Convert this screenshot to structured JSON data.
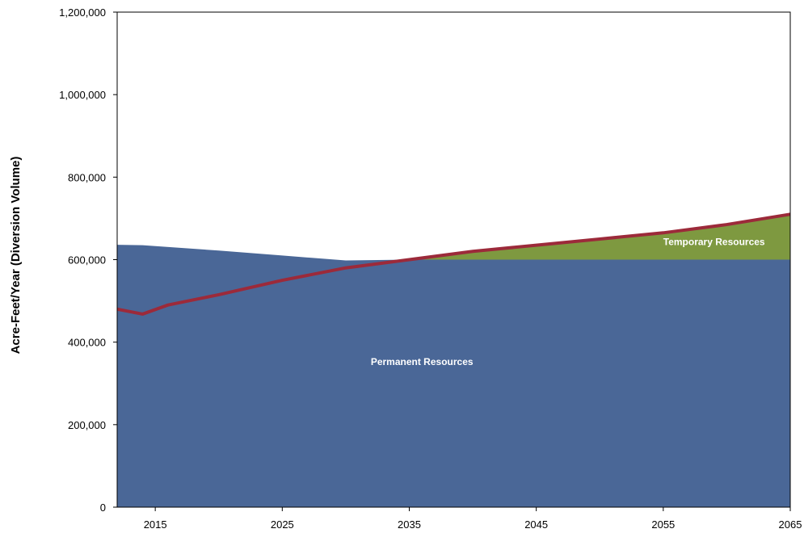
{
  "chart_data": {
    "type": "area",
    "title": "",
    "xlabel": "",
    "ylabel": "Acre-Feet/Year (Diversion Volume)",
    "x_ticks": [
      "2015",
      "2025",
      "2035",
      "2045",
      "2055",
      "2065"
    ],
    "y_ticks": [
      "0",
      "200,000",
      "400,000",
      "600,000",
      "800,000",
      "1,000,000",
      "1,200,000"
    ],
    "xlim": [
      2012,
      2065
    ],
    "ylim": [
      0,
      1200000
    ],
    "grid": false,
    "series": [
      {
        "name": "Permanent Resources",
        "kind": "area",
        "color": "#4A6797",
        "x": [
          2012,
          2014,
          2020,
          2025,
          2030,
          2035,
          2040,
          2045,
          2050,
          2055,
          2060,
          2065
        ],
        "values": [
          636000,
          635000,
          622000,
          610000,
          598000,
          600000,
          600000,
          600000,
          600000,
          600000,
          600000,
          600000
        ]
      },
      {
        "name": "Temporary Resources",
        "kind": "area",
        "color": "#7E9940",
        "x": [
          2012,
          2014,
          2020,
          2025,
          2030,
          2035,
          2040,
          2045,
          2050,
          2055,
          2060,
          2065
        ],
        "values": [
          0,
          0,
          0,
          0,
          0,
          0,
          20000,
          35000,
          50000,
          65000,
          85000,
          110000
        ]
      },
      {
        "name": "",
        "kind": "line",
        "color": "#9C2A3A",
        "x": [
          2012,
          2014,
          2016,
          2020,
          2025,
          2030,
          2035,
          2040,
          2045,
          2050,
          2055,
          2060,
          2065
        ],
        "values": [
          480000,
          468000,
          490000,
          515000,
          550000,
          580000,
          600000,
          620000,
          635000,
          650000,
          665000,
          685000,
          710000
        ]
      }
    ],
    "annotations": [
      {
        "text": "Permanent Resources",
        "x": 2036,
        "y": 345000
      },
      {
        "text": "Temporary Resources",
        "x": 2059,
        "y": 635000
      }
    ]
  }
}
